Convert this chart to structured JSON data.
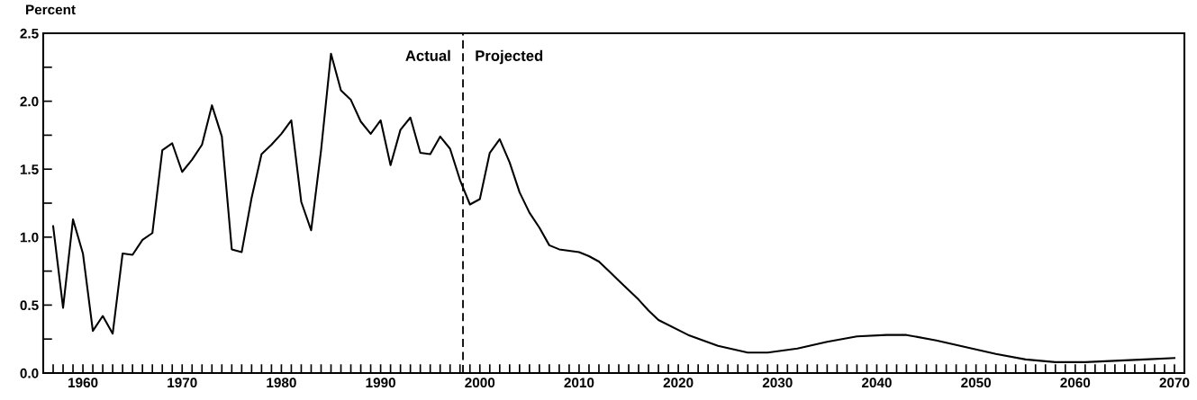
{
  "chart_data": {
    "type": "line",
    "ylabel": "Percent",
    "color": "#000000",
    "x": [
      1957,
      1958,
      1959,
      1960,
      1961,
      1962,
      1963,
      1964,
      1965,
      1966,
      1967,
      1968,
      1969,
      1970,
      1971,
      1972,
      1973,
      1974,
      1975,
      1976,
      1977,
      1978,
      1979,
      1980,
      1981,
      1982,
      1983,
      1984,
      1985,
      1986,
      1987,
      1988,
      1989,
      1990,
      1991,
      1992,
      1993,
      1994,
      1995,
      1996,
      1997,
      1998,
      1999,
      2000,
      2001,
      2002,
      2003,
      2004,
      2005,
      2006,
      2007,
      2008,
      2009,
      2010,
      2011,
      2012,
      2013,
      2014,
      2015,
      2016,
      2017,
      2018,
      2021,
      2024,
      2027,
      2029,
      2032,
      2035,
      2038,
      2041,
      2043,
      2046,
      2049,
      2052,
      2055,
      2058,
      2061,
      2064,
      2067,
      2070
    ],
    "values": [
      1.08,
      0.48,
      1.13,
      0.88,
      0.31,
      0.42,
      0.29,
      0.88,
      0.87,
      0.98,
      1.03,
      1.64,
      1.69,
      1.48,
      1.57,
      1.68,
      1.97,
      1.74,
      0.91,
      0.89,
      1.29,
      1.61,
      1.68,
      1.76,
      1.86,
      1.26,
      1.05,
      1.64,
      2.35,
      2.08,
      2.01,
      1.85,
      1.76,
      1.86,
      1.53,
      1.79,
      1.88,
      1.62,
      1.61,
      1.74,
      1.65,
      1.42,
      1.24,
      1.28,
      1.62,
      1.72,
      1.55,
      1.33,
      1.18,
      1.07,
      0.94,
      0.91,
      0.9,
      0.89,
      0.86,
      0.82,
      0.75,
      0.68,
      0.61,
      0.54,
      0.46,
      0.39,
      0.28,
      0.2,
      0.15,
      0.15,
      0.18,
      0.23,
      0.27,
      0.28,
      0.28,
      0.24,
      0.19,
      0.14,
      0.1,
      0.08,
      0.08,
      0.09,
      0.1,
      0.11
    ],
    "xlim": [
      1956,
      2071
    ],
    "xticks": [
      {
        "value": 1957,
        "label": null
      },
      {
        "value": 1958,
        "label": null
      },
      {
        "value": 1959,
        "label": null
      },
      1960,
      {
        "value": 1961,
        "label": null
      },
      {
        "value": 1962,
        "label": null
      },
      {
        "value": 1963,
        "label": null
      },
      {
        "value": 1964,
        "label": null
      },
      {
        "value": 1965,
        "label": null
      },
      {
        "value": 1966,
        "label": null
      },
      {
        "value": 1967,
        "label": null
      },
      {
        "value": 1968,
        "label": null
      },
      {
        "value": 1969,
        "label": null
      },
      1970,
      {
        "value": 1971,
        "label": null
      },
      {
        "value": 1972,
        "label": null
      },
      {
        "value": 1973,
        "label": null
      },
      {
        "value": 1974,
        "label": null
      },
      {
        "value": 1975,
        "label": null
      },
      {
        "value": 1976,
        "label": null
      },
      {
        "value": 1977,
        "label": null
      },
      {
        "value": 1978,
        "label": null
      },
      {
        "value": 1979,
        "label": null
      },
      1980,
      {
        "value": 1981,
        "label": null
      },
      {
        "value": 1982,
        "label": null
      },
      {
        "value": 1983,
        "label": null
      },
      {
        "value": 1984,
        "label": null
      },
      {
        "value": 1985,
        "label": null
      },
      {
        "value": 1986,
        "label": null
      },
      {
        "value": 1987,
        "label": null
      },
      {
        "value": 1988,
        "label": null
      },
      {
        "value": 1989,
        "label": null
      },
      1990,
      {
        "value": 1991,
        "label": null
      },
      {
        "value": 1992,
        "label": null
      },
      {
        "value": 1993,
        "label": null
      },
      {
        "value": 1994,
        "label": null
      },
      {
        "value": 1995,
        "label": null
      },
      {
        "value": 1996,
        "label": null
      },
      {
        "value": 1997,
        "label": null
      },
      {
        "value": 1998,
        "label": null
      },
      {
        "value": 1999,
        "label": null
      },
      2000,
      {
        "value": 2001,
        "label": null
      },
      {
        "value": 2002,
        "label": null
      },
      {
        "value": 2003,
        "label": null
      },
      {
        "value": 2004,
        "label": null
      },
      {
        "value": 2005,
        "label": null
      },
      {
        "value": 2006,
        "label": null
      },
      {
        "value": 2007,
        "label": null
      },
      {
        "value": 2008,
        "label": null
      },
      {
        "value": 2009,
        "label": null
      },
      2010,
      {
        "value": 2011,
        "label": null
      },
      {
        "value": 2012,
        "label": null
      },
      {
        "value": 2013,
        "label": null
      },
      {
        "value": 2014,
        "label": null
      },
      {
        "value": 2015,
        "label": null
      },
      {
        "value": 2016,
        "label": null
      },
      {
        "value": 2017,
        "label": null
      },
      {
        "value": 2018,
        "label": null
      },
      {
        "value": 2019,
        "label": null
      },
      2020,
      {
        "value": 2021,
        "label": null
      },
      {
        "value": 2022,
        "label": null
      },
      {
        "value": 2023,
        "label": null
      },
      {
        "value": 2024,
        "label": null
      },
      {
        "value": 2025,
        "label": null
      },
      {
        "value": 2026,
        "label": null
      },
      {
        "value": 2027,
        "label": null
      },
      {
        "value": 2028,
        "label": null
      },
      {
        "value": 2029,
        "label": null
      },
      2030,
      {
        "value": 2031,
        "label": null
      },
      {
        "value": 2032,
        "label": null
      },
      {
        "value": 2033,
        "label": null
      },
      {
        "value": 2034,
        "label": null
      },
      {
        "value": 2035,
        "label": null
      },
      {
        "value": 2036,
        "label": null
      },
      {
        "value": 2037,
        "label": null
      },
      {
        "value": 2038,
        "label": null
      },
      {
        "value": 2039,
        "label": null
      },
      2040,
      {
        "value": 2041,
        "label": null
      },
      {
        "value": 2042,
        "label": null
      },
      {
        "value": 2043,
        "label": null
      },
      {
        "value": 2044,
        "label": null
      },
      {
        "value": 2045,
        "label": null
      },
      {
        "value": 2046,
        "label": null
      },
      {
        "value": 2047,
        "label": null
      },
      {
        "value": 2048,
        "label": null
      },
      {
        "value": 2049,
        "label": null
      },
      2050,
      {
        "value": 2051,
        "label": null
      },
      {
        "value": 2052,
        "label": null
      },
      {
        "value": 2053,
        "label": null
      },
      {
        "value": 2054,
        "label": null
      },
      {
        "value": 2055,
        "label": null
      },
      {
        "value": 2056,
        "label": null
      },
      {
        "value": 2057,
        "label": null
      },
      {
        "value": 2058,
        "label": null
      },
      {
        "value": 2059,
        "label": null
      },
      2060,
      {
        "value": 2061,
        "label": null
      },
      {
        "value": 2062,
        "label": null
      },
      {
        "value": 2063,
        "label": null
      },
      {
        "value": 2064,
        "label": null
      },
      {
        "value": 2065,
        "label": null
      },
      {
        "value": 2066,
        "label": null
      },
      {
        "value": 2067,
        "label": null
      },
      {
        "value": 2068,
        "label": null
      },
      {
        "value": 2069,
        "label": null
      },
      2070
    ],
    "ylim": [
      0,
      2.5
    ],
    "yticks": [
      {
        "value": 0,
        "label": "0.0"
      },
      {
        "value": 0.25,
        "label": null
      },
      {
        "value": 0.5,
        "label": "0.5"
      },
      {
        "value": 0.75,
        "label": null
      },
      {
        "value": 1,
        "label": "1.0"
      },
      {
        "value": 1.25,
        "label": null
      },
      {
        "value": 1.5,
        "label": "1.5"
      },
      {
        "value": 1.75,
        "label": null
      },
      {
        "value": 2,
        "label": "2.0"
      },
      {
        "value": 2.25,
        "label": null
      },
      {
        "value": 2.5,
        "label": "2.5"
      }
    ],
    "ref_lines": [
      {
        "axis": "x",
        "value": 1998.3,
        "color": "#000000",
        "line_style": "dashed"
      }
    ],
    "annotations": [
      "Actual",
      "Projected"
    ],
    "grid": false,
    "legend": false,
    "marker": "none",
    "line_style": "solid"
  }
}
